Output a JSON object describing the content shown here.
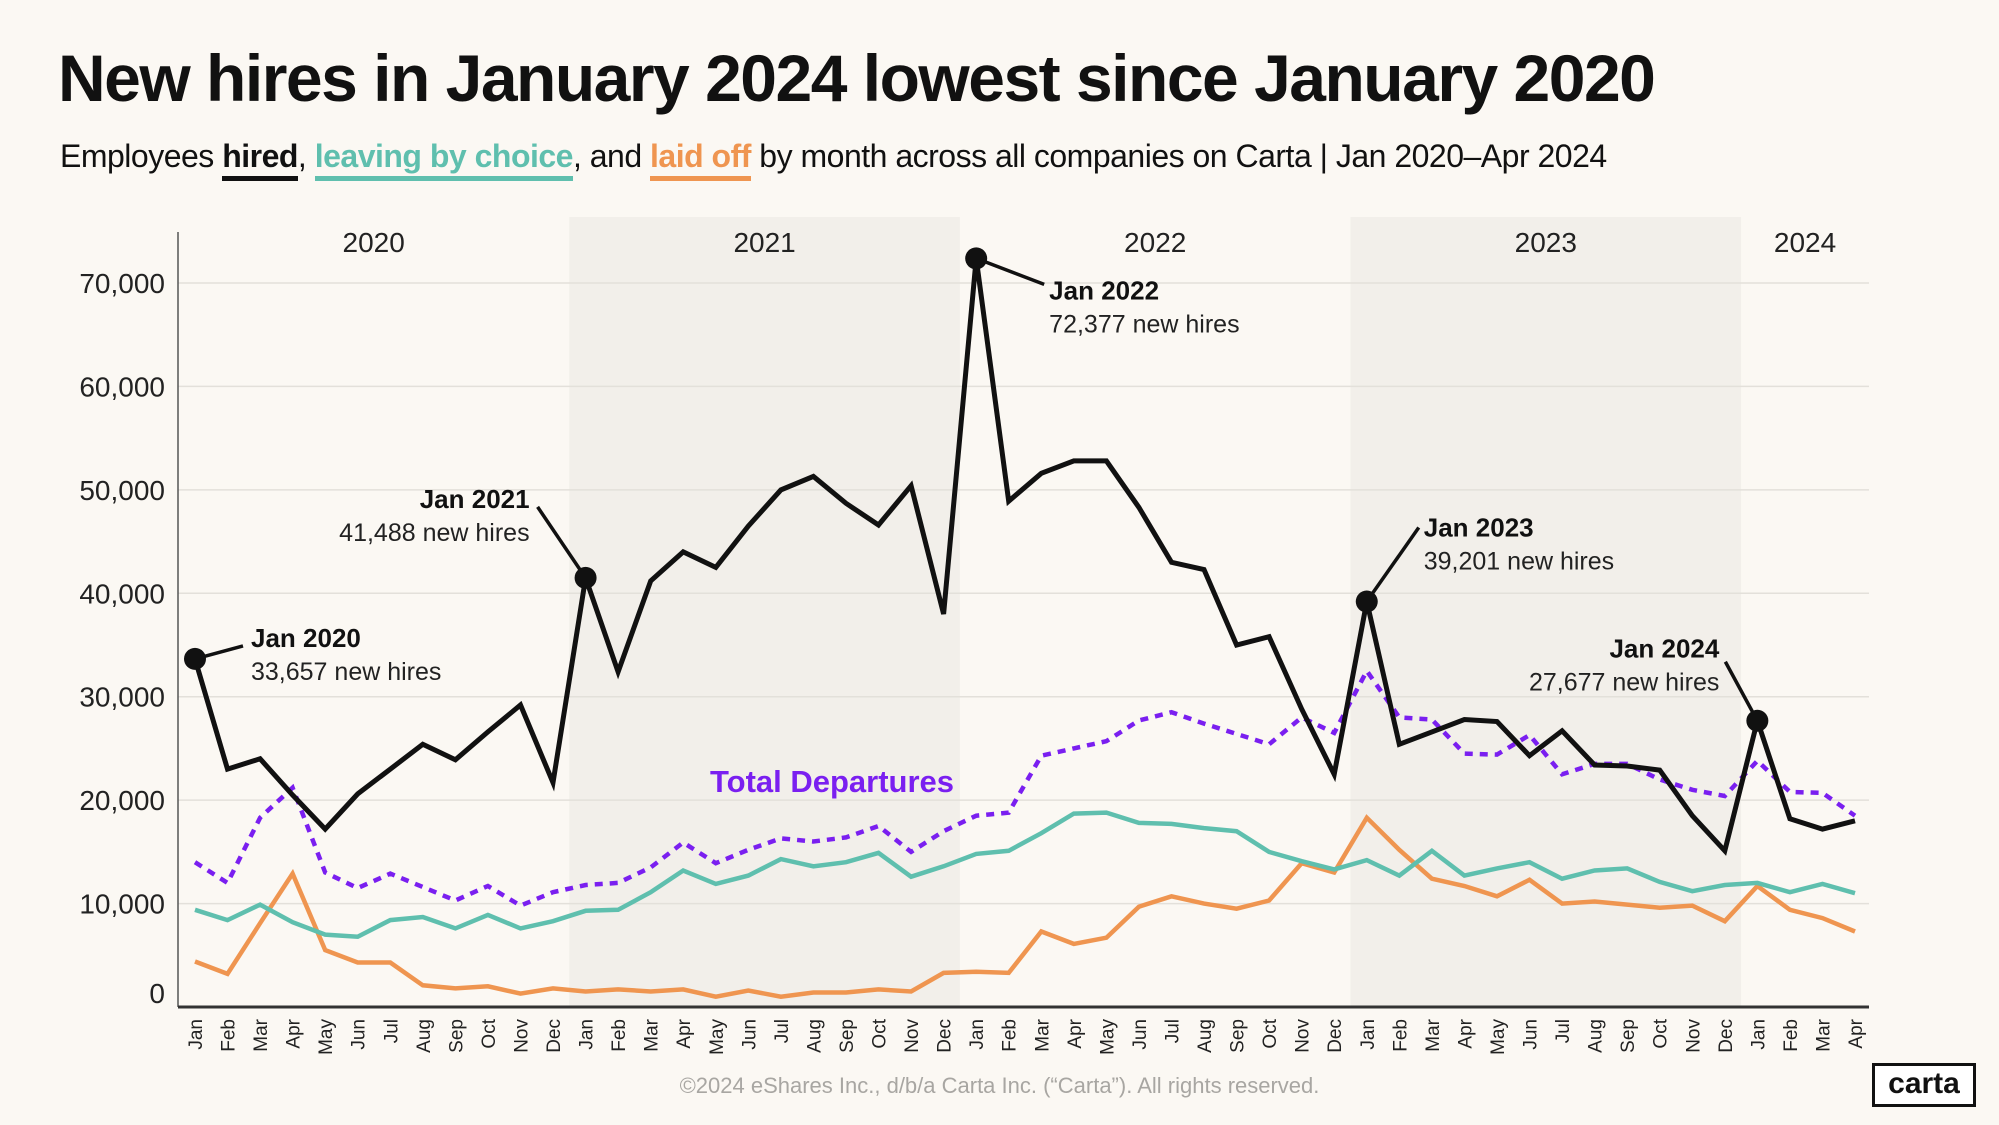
{
  "title": "New hires in January 2024 lowest since January 2020",
  "subtitle": {
    "prefix": "Employees ",
    "hired": "hired",
    "sep1": ", ",
    "leaving": "leaving by choice",
    "sep2": ", and ",
    "laid_off": "laid off",
    "suffix": " by month across all companies on Carta | Jan 2020–Apr 2024"
  },
  "colors": {
    "hired": "#111111",
    "leaving_by_choice": "#5fbfae",
    "laid_off": "#ef9550",
    "total_departures": "#7a1ff0",
    "band": "#f2efea",
    "grid": "#e3e0da"
  },
  "footer": "©2024 eShares Inc., d/b/a Carta Inc. (“Carta”). All rights reserved.",
  "logo": "carta",
  "chart_data": {
    "type": "line",
    "title": "New hires in January 2024 lowest since January 2020",
    "ylim": [
      0,
      75000
    ],
    "yticks": [
      "0",
      "10,000",
      "20,000",
      "30,000",
      "40,000",
      "50,000",
      "60,000",
      "70,000"
    ],
    "ytick_values": [
      0,
      10000,
      20000,
      30000,
      40000,
      50000,
      60000,
      70000
    ],
    "grid": true,
    "year_labels": [
      "2020",
      "2021",
      "2022",
      "2023",
      "2024"
    ],
    "shaded_years": [
      "2021",
      "2023"
    ],
    "x": [
      "Jan",
      "Feb",
      "Mar",
      "Apr",
      "May",
      "Jun",
      "Jul",
      "Aug",
      "Sep",
      "Oct",
      "Nov",
      "Dec",
      "Jan",
      "Feb",
      "Mar",
      "Apr",
      "May",
      "Jun",
      "Jul",
      "Aug",
      "Sep",
      "Oct",
      "Nov",
      "Dec",
      "Jan",
      "Feb",
      "Mar",
      "Apr",
      "May",
      "Jun",
      "Jul",
      "Aug",
      "Sep",
      "Oct",
      "Nov",
      "Dec",
      "Jan",
      "Feb",
      "Mar",
      "Apr",
      "May",
      "Jun",
      "Jul",
      "Aug",
      "Sep",
      "Oct",
      "Nov",
      "Dec",
      "Jan",
      "Feb",
      "Mar",
      "Apr"
    ],
    "series": [
      {
        "key": "hired",
        "style": "solid",
        "values": [
          33657,
          23000,
          24000,
          20500,
          17200,
          20600,
          23000,
          25400,
          23900,
          26600,
          29200,
          21700,
          41488,
          32400,
          41200,
          44000,
          42500,
          46500,
          50000,
          51300,
          48700,
          46600,
          50400,
          38000,
          72377,
          48900,
          51600,
          52800,
          52800,
          48300,
          43000,
          42300,
          35000,
          35800,
          28800,
          22500,
          39201,
          25400,
          26600,
          27800,
          27600,
          24300,
          26700,
          23400,
          23300,
          22900,
          18500,
          15100,
          27677,
          18200,
          17200,
          18000
        ]
      },
      {
        "key": "total_departures",
        "name": "Total Departures",
        "style": "dotted",
        "values": [
          14000,
          12000,
          18300,
          21200,
          13000,
          11500,
          12900,
          11600,
          10300,
          11700,
          9800,
          11100,
          11800,
          12000,
          13500,
          15900,
          13900,
          15200,
          16300,
          16000,
          16400,
          17500,
          15000,
          17000,
          18500,
          18800,
          24300,
          25000,
          25700,
          27700,
          28500,
          27400,
          26400,
          25400,
          28000,
          26500,
          32500,
          28000,
          27800,
          24500,
          24400,
          26300,
          22500,
          23500,
          23500,
          22000,
          21000,
          20400,
          23800,
          20800,
          20700,
          18500
        ]
      },
      {
        "key": "leaving_by_choice",
        "style": "solid",
        "values": [
          9400,
          8400,
          9900,
          8200,
          7000,
          6800,
          8400,
          8700,
          7600,
          8900,
          7600,
          8300,
          9300,
          9400,
          11100,
          13200,
          11900,
          12700,
          14300,
          13600,
          14000,
          14900,
          12600,
          13600,
          14800,
          15100,
          16800,
          18700,
          18800,
          17800,
          17700,
          17300,
          17000,
          15000,
          14100,
          13300,
          14200,
          12700,
          15100,
          12700,
          13400,
          14000,
          12400,
          13200,
          13400,
          12100,
          11200,
          11800,
          12000,
          11100,
          11900,
          11000
        ]
      },
      {
        "key": "laid_off",
        "style": "solid",
        "values": [
          4400,
          3200,
          8100,
          12900,
          5500,
          4300,
          4300,
          2100,
          1800,
          2000,
          1300,
          1800,
          1500,
          1700,
          1500,
          1700,
          1000,
          1600,
          1000,
          1400,
          1400,
          1700,
          1500,
          3300,
          3400,
          3300,
          7300,
          6100,
          6700,
          9700,
          10700,
          10000,
          9500,
          10300,
          13900,
          13000,
          18300,
          15200,
          12400,
          11700,
          10700,
          12300,
          10000,
          10200,
          9900,
          9600,
          9800,
          8300,
          11700,
          9400,
          8600,
          7300
        ]
      }
    ],
    "annotations": [
      {
        "index": 0,
        "label": "Jan 2020",
        "detail": "33,657 new hires"
      },
      {
        "index": 12,
        "label": "Jan 2021",
        "detail": "41,488 new hires"
      },
      {
        "index": 24,
        "label": "Jan 2022",
        "detail": "72,377 new hires"
      },
      {
        "index": 36,
        "label": "Jan 2023",
        "detail": "39,201 new hires"
      },
      {
        "index": 48,
        "label": "Jan 2024",
        "detail": "27,677 new hires"
      }
    ],
    "series_label": "Total Departures"
  }
}
